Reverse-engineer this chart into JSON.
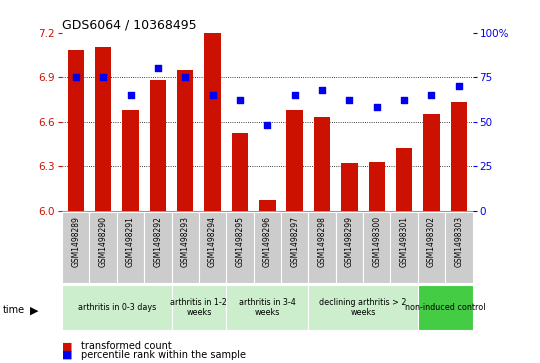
{
  "title": "GDS6064 / 10368495",
  "samples": [
    "GSM1498289",
    "GSM1498290",
    "GSM1498291",
    "GSM1498292",
    "GSM1498293",
    "GSM1498294",
    "GSM1498295",
    "GSM1498296",
    "GSM1498297",
    "GSM1498298",
    "GSM1498299",
    "GSM1498300",
    "GSM1498301",
    "GSM1498302",
    "GSM1498303"
  ],
  "bar_values": [
    7.08,
    7.1,
    6.68,
    6.88,
    6.95,
    7.2,
    6.52,
    6.07,
    6.68,
    6.63,
    6.32,
    6.33,
    6.42,
    6.65,
    6.73
  ],
  "dot_values": [
    75,
    75,
    65,
    80,
    75,
    65,
    62,
    48,
    65,
    68,
    62,
    58,
    62,
    65,
    70
  ],
  "ylim": [
    6.0,
    7.2
  ],
  "yticks": [
    6.0,
    6.3,
    6.6,
    6.9,
    7.2
  ],
  "y2lim": [
    0,
    100
  ],
  "y2ticks": [
    0,
    25,
    50,
    75,
    100
  ],
  "bar_color": "#cc1100",
  "dot_color": "#0000ee",
  "groups": [
    {
      "label": "arthritis in 0-3 days",
      "indices": [
        0,
        1,
        2,
        3
      ],
      "light": true
    },
    {
      "label": "arthritis in 1-2\nweeks",
      "indices": [
        4,
        5
      ],
      "light": true
    },
    {
      "label": "arthritis in 3-4\nweeks",
      "indices": [
        6,
        7,
        8
      ],
      "light": true
    },
    {
      "label": "declining arthritis > 2\nweeks",
      "indices": [
        9,
        10,
        11,
        12
      ],
      "light": true
    },
    {
      "label": "non-induced control",
      "indices": [
        13,
        14
      ],
      "light": false
    }
  ],
  "legend_bar_label": "transformed count",
  "legend_dot_label": "percentile rank within the sample",
  "group_light_color": "#cceecc",
  "group_dark_color": "#44cc44",
  "sample_box_color": "#cccccc",
  "background_color": "#ffffff"
}
